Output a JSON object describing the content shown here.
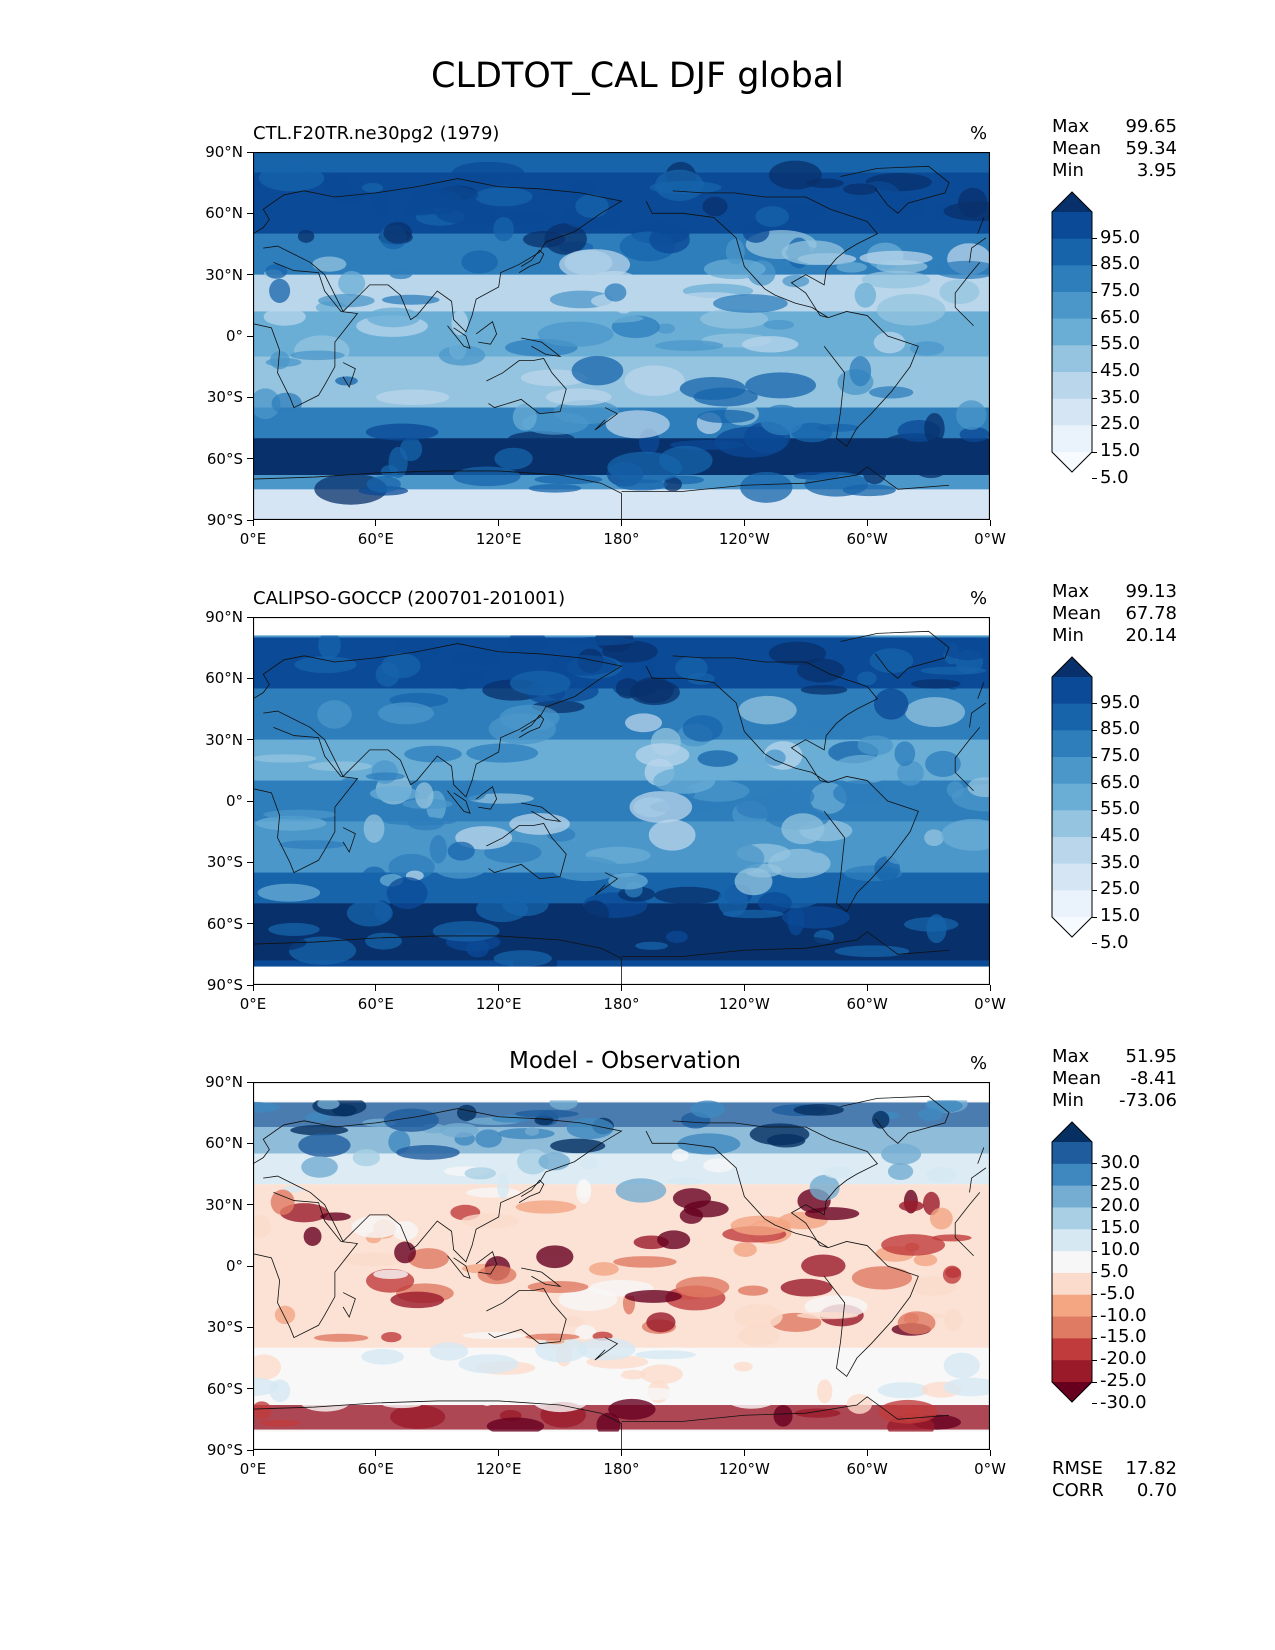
{
  "title": "CLDTOT_CAL DJF global",
  "panels": [
    {
      "id": "model",
      "title": "CTL.F20TR.ne30pg2 (1979)",
      "title_align": "left",
      "unit": "%",
      "stats": [
        {
          "label": "Max",
          "value": "99.65"
        },
        {
          "label": "Mean",
          "value": "59.34"
        },
        {
          "label": "Min",
          "value": "3.95"
        }
      ],
      "colorbar": {
        "labels": [
          "95.0",
          "85.0",
          "75.0",
          "65.0",
          "55.0",
          "45.0",
          "35.0",
          "25.0",
          "15.0",
          "5.0"
        ],
        "colors": [
          "#08306b",
          "#0b4a96",
          "#1764ab",
          "#2e7ebc",
          "#4b97c9",
          "#6aaed6",
          "#94c4df",
          "#bad6eb",
          "#d6e5f4",
          "#eaf2fb",
          "#f7fbff"
        ]
      }
    },
    {
      "id": "observation",
      "title": "CALIPSO-GOCCP (200701-201001)",
      "title_align": "left",
      "unit": "%",
      "stats": [
        {
          "label": "Max",
          "value": "99.13"
        },
        {
          "label": "Mean",
          "value": "67.78"
        },
        {
          "label": "Min",
          "value": "20.14"
        }
      ],
      "colorbar": {
        "labels": [
          "95.0",
          "85.0",
          "75.0",
          "65.0",
          "55.0",
          "45.0",
          "35.0",
          "25.0",
          "15.0",
          "5.0"
        ],
        "colors": [
          "#08306b",
          "#0b4a96",
          "#1764ab",
          "#2e7ebc",
          "#4b97c9",
          "#6aaed6",
          "#94c4df",
          "#bad6eb",
          "#d6e5f4",
          "#eaf2fb",
          "#f7fbff"
        ]
      }
    },
    {
      "id": "difference",
      "title": "Model - Observation",
      "title_align": "center",
      "unit": "%",
      "stats": [
        {
          "label": "Max",
          "value": "51.95"
        },
        {
          "label": "Mean",
          "value": "-8.41"
        },
        {
          "label": "Min",
          "value": "-73.06"
        }
      ],
      "extra_stats": [
        {
          "label": "RMSE",
          "value": "17.82"
        },
        {
          "label": "CORR",
          "value": "0.70"
        }
      ],
      "colorbar": {
        "labels": [
          "30.0",
          "25.0",
          "20.0",
          "15.0",
          "10.0",
          "5.0",
          "-5.0",
          "-10.0",
          "-15.0",
          "-20.0",
          "-25.0",
          "-30.0"
        ],
        "colors": [
          "#053061",
          "#1f5c9e",
          "#3f88bf",
          "#74add1",
          "#a9cfe5",
          "#d6e8f2",
          "#f7f7f7",
          "#fbdccc",
          "#f4a582",
          "#e07b63",
          "#c03c3c",
          "#9a1a2a",
          "#67001f"
        ]
      }
    }
  ],
  "axes": {
    "lat_ticks": [
      "90°N",
      "60°N",
      "30°N",
      "0°",
      "30°S",
      "60°S",
      "90°S"
    ],
    "lon_ticks": [
      "0°E",
      "60°E",
      "120°E",
      "180°",
      "120°W",
      "60°W",
      "0°W"
    ]
  }
}
